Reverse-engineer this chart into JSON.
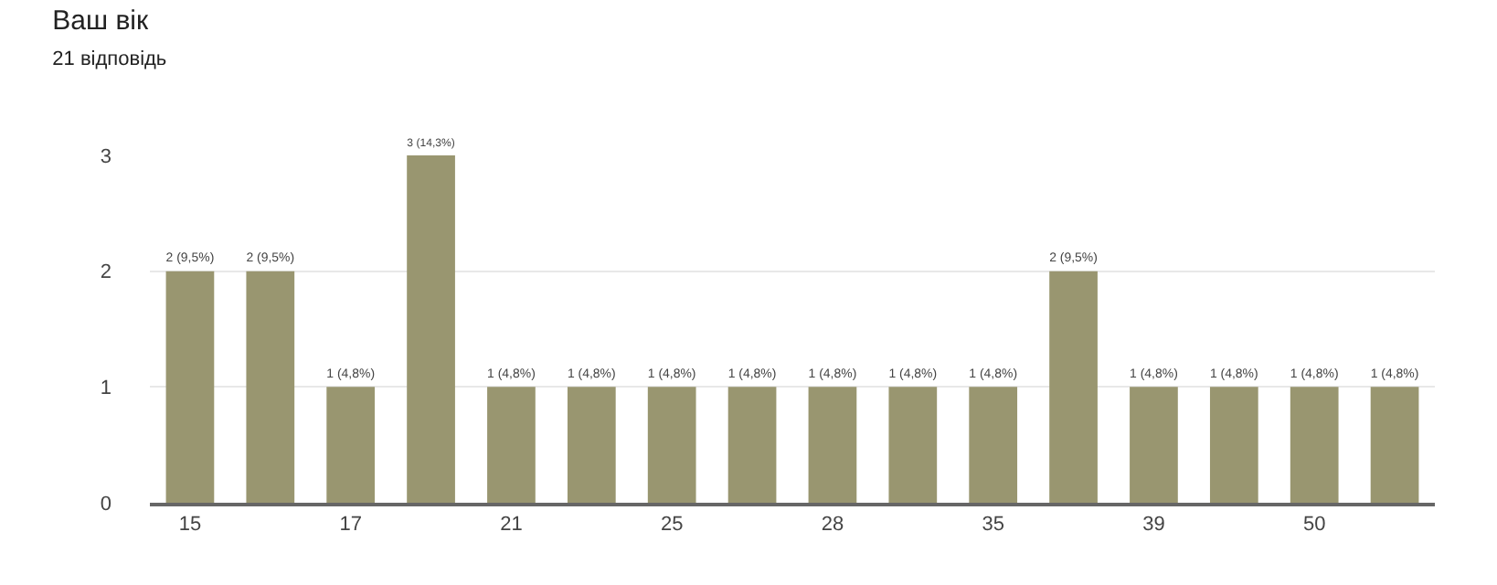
{
  "chart_data": {
    "type": "bar",
    "title": "Ваш вік",
    "subtitle": "21 відповідь",
    "categories": [
      "15",
      null,
      "17",
      null,
      "21",
      null,
      "25",
      null,
      "28",
      null,
      "35",
      null,
      "39",
      null,
      "50",
      null
    ],
    "values": [
      2,
      2,
      1,
      3,
      1,
      1,
      1,
      1,
      1,
      1,
      1,
      2,
      1,
      1,
      1,
      1
    ],
    "value_labels": [
      "2 (9,5%)",
      "2 (9,5%)",
      "1 (4,8%)",
      "3 (14,3%)",
      "1 (4,8%)",
      "1 (4,8%)",
      "1 (4,8%)",
      "1 (4,8%)",
      "1 (4,8%)",
      "1 (4,8%)",
      "1 (4,8%)",
      "2 (9,5%)",
      "1 (4,8%)",
      "1 (4,8%)",
      "1 (4,8%)",
      "1 (4,8%)"
    ],
    "color": "#999670",
    "ylim": [
      0,
      3
    ],
    "yticks": [
      0,
      1,
      2,
      3
    ],
    "grid": "y"
  }
}
